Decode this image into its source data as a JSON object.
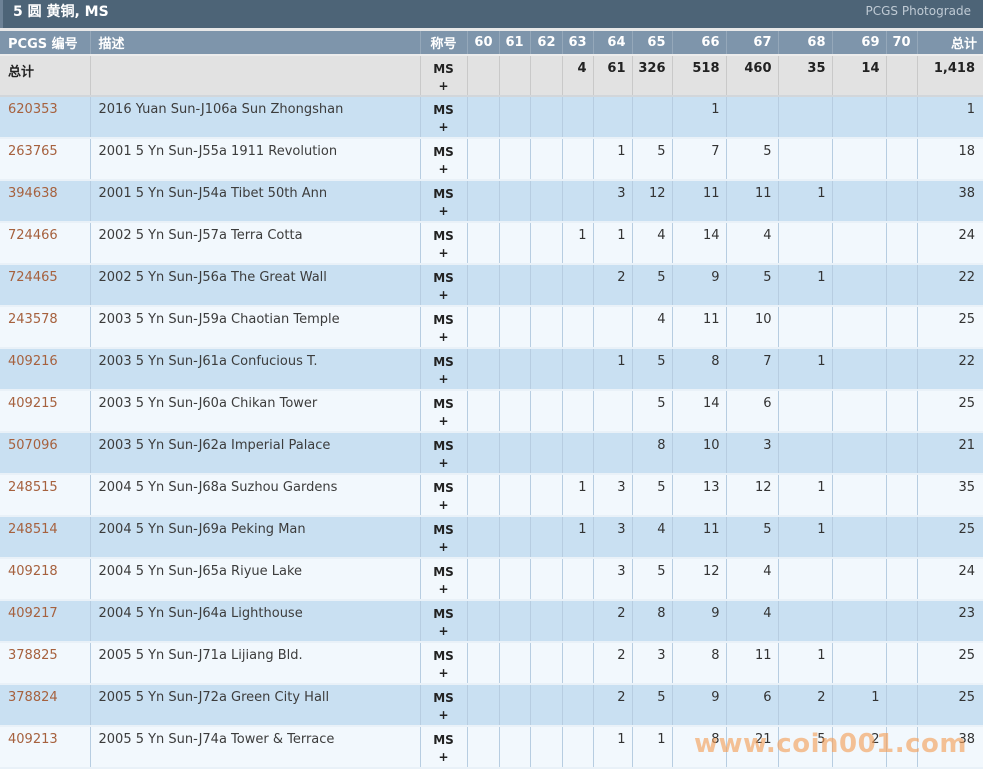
{
  "header": {
    "title": "5 圆 黄铜, MS",
    "right_link": "PCGS Photograde"
  },
  "watermark": "www.coin001.com",
  "colors": {
    "header_bar": "#4d6477",
    "column_header": "#7e95ab",
    "row_blue": "#c9e0f2",
    "row_light": "#f2f8fd",
    "totals_row": "#e2e2e2",
    "accent_link": "#a6613e",
    "watermark": "#f59e57"
  },
  "table": {
    "columns": [
      "PCGS 编号",
      "描述",
      "称号",
      "60",
      "61",
      "62",
      "63",
      "64",
      "65",
      "66",
      "67",
      "68",
      "69",
      "70",
      "总计"
    ],
    "totals": {
      "label": "总计",
      "description": "",
      "designation": "MS +",
      "grades": [
        "",
        "",
        "",
        "4",
        "61",
        "326",
        "518",
        "460",
        "35",
        "14",
        ""
      ],
      "total": "1,418"
    },
    "rows": [
      {
        "pcgs_number": "620353",
        "description": "2016 Yuan Sun-J106a Sun Zhongshan",
        "designation": "MS +",
        "grades": [
          "",
          "",
          "",
          "",
          "",
          "",
          "1",
          "",
          "",
          "",
          ""
        ],
        "total": "1"
      },
      {
        "pcgs_number": "263765",
        "description": "2001 5 Yn Sun-J55a 1911 Revolution",
        "designation": "MS +",
        "grades": [
          "",
          "",
          "",
          "",
          "1",
          "5",
          "7",
          "5",
          "",
          "",
          ""
        ],
        "total": "18"
      },
      {
        "pcgs_number": "394638",
        "description": "2001 5 Yn Sun-J54a Tibet 50th Ann",
        "designation": "MS +",
        "grades": [
          "",
          "",
          "",
          "",
          "3",
          "12",
          "11",
          "11",
          "1",
          "",
          ""
        ],
        "total": "38"
      },
      {
        "pcgs_number": "724466",
        "description": "2002 5 Yn Sun-J57a Terra Cotta",
        "designation": "MS +",
        "grades": [
          "",
          "",
          "",
          "1",
          "1",
          "4",
          "14",
          "4",
          "",
          "",
          ""
        ],
        "total": "24"
      },
      {
        "pcgs_number": "724465",
        "description": "2002 5 Yn Sun-J56a The Great Wall",
        "designation": "MS +",
        "grades": [
          "",
          "",
          "",
          "",
          "2",
          "5",
          "9",
          "5",
          "1",
          "",
          ""
        ],
        "total": "22"
      },
      {
        "pcgs_number": "243578",
        "description": "2003 5 Yn Sun-J59a Chaotian Temple",
        "designation": "MS +",
        "grades": [
          "",
          "",
          "",
          "",
          "",
          "4",
          "11",
          "10",
          "",
          "",
          ""
        ],
        "total": "25"
      },
      {
        "pcgs_number": "409216",
        "description": "2003 5 Yn Sun-J61a Confucious T.",
        "designation": "MS +",
        "grades": [
          "",
          "",
          "",
          "",
          "1",
          "5",
          "8",
          "7",
          "1",
          "",
          ""
        ],
        "total": "22"
      },
      {
        "pcgs_number": "409215",
        "description": "2003 5 Yn Sun-J60a Chikan Tower",
        "designation": "MS +",
        "grades": [
          "",
          "",
          "",
          "",
          "",
          "5",
          "14",
          "6",
          "",
          "",
          ""
        ],
        "total": "25"
      },
      {
        "pcgs_number": "507096",
        "description": "2003 5 Yn Sun-J62a Imperial Palace",
        "designation": "MS +",
        "grades": [
          "",
          "",
          "",
          "",
          "",
          "8",
          "10",
          "3",
          "",
          "",
          ""
        ],
        "total": "21"
      },
      {
        "pcgs_number": "248515",
        "description": "2004 5 Yn Sun-J68a Suzhou Gardens",
        "designation": "MS +",
        "grades": [
          "",
          "",
          "",
          "1",
          "3",
          "5",
          "13",
          "12",
          "1",
          "",
          ""
        ],
        "total": "35"
      },
      {
        "pcgs_number": "248514",
        "description": "2004 5 Yn Sun-J69a Peking Man",
        "designation": "MS +",
        "grades": [
          "",
          "",
          "",
          "1",
          "3",
          "4",
          "11",
          "5",
          "1",
          "",
          ""
        ],
        "total": "25"
      },
      {
        "pcgs_number": "409218",
        "description": "2004 5 Yn Sun-J65a Riyue Lake",
        "designation": "MS +",
        "grades": [
          "",
          "",
          "",
          "",
          "3",
          "5",
          "12",
          "4",
          "",
          "",
          ""
        ],
        "total": "24"
      },
      {
        "pcgs_number": "409217",
        "description": "2004 5 Yn Sun-J64a Lighthouse",
        "designation": "MS +",
        "grades": [
          "",
          "",
          "",
          "",
          "2",
          "8",
          "9",
          "4",
          "",
          "",
          ""
        ],
        "total": "23"
      },
      {
        "pcgs_number": "378825",
        "description": "2005 5 Yn Sun-J71a Lijiang Bld.",
        "designation": "MS +",
        "grades": [
          "",
          "",
          "",
          "",
          "2",
          "3",
          "8",
          "11",
          "1",
          "",
          ""
        ],
        "total": "25"
      },
      {
        "pcgs_number": "378824",
        "description": "2005 5 Yn Sun-J72a Green City Hall",
        "designation": "MS +",
        "grades": [
          "",
          "",
          "",
          "",
          "2",
          "5",
          "9",
          "6",
          "2",
          "1",
          ""
        ],
        "total": "25"
      },
      {
        "pcgs_number": "409213",
        "description": "2005 5 Yn Sun-J74a Tower & Terrace",
        "designation": "MS +",
        "grades": [
          "",
          "",
          "",
          "",
          "1",
          "1",
          "8",
          "21",
          "5",
          "2",
          ""
        ],
        "total": "38"
      }
    ]
  }
}
